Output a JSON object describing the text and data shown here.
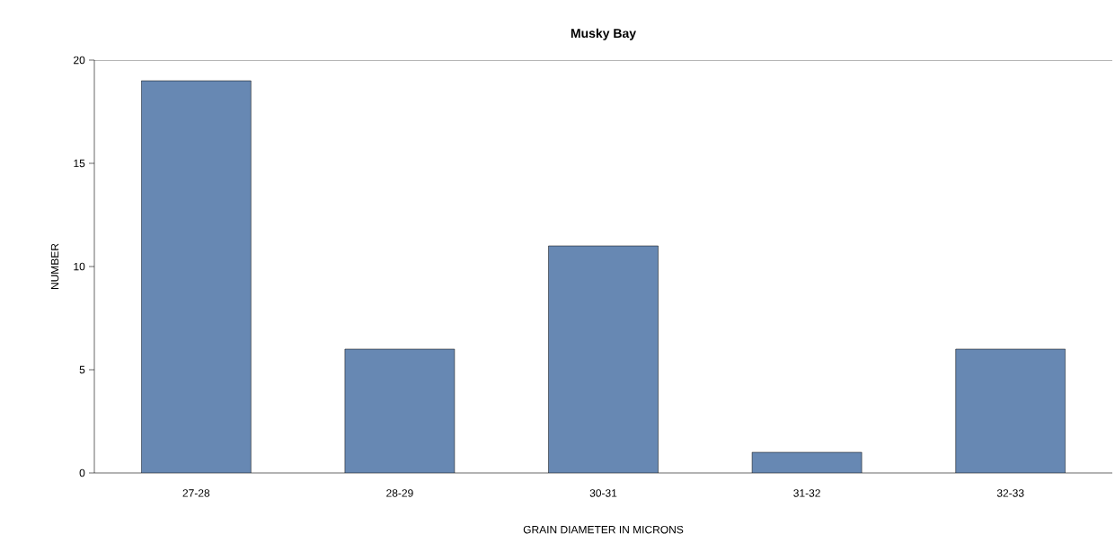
{
  "chart_data": {
    "type": "bar",
    "title": "Musky Bay",
    "xlabel": "GRAIN DIAMETER IN MICRONS",
    "ylabel": "NUMBER",
    "categories": [
      "27-28",
      "28-29",
      "30-31",
      "31-32",
      "32-33"
    ],
    "values": [
      19,
      6,
      11,
      1,
      6
    ],
    "color": "#6788b3",
    "ylim": [
      0,
      20
    ],
    "yticks": [
      0,
      5,
      10,
      15,
      20
    ]
  }
}
